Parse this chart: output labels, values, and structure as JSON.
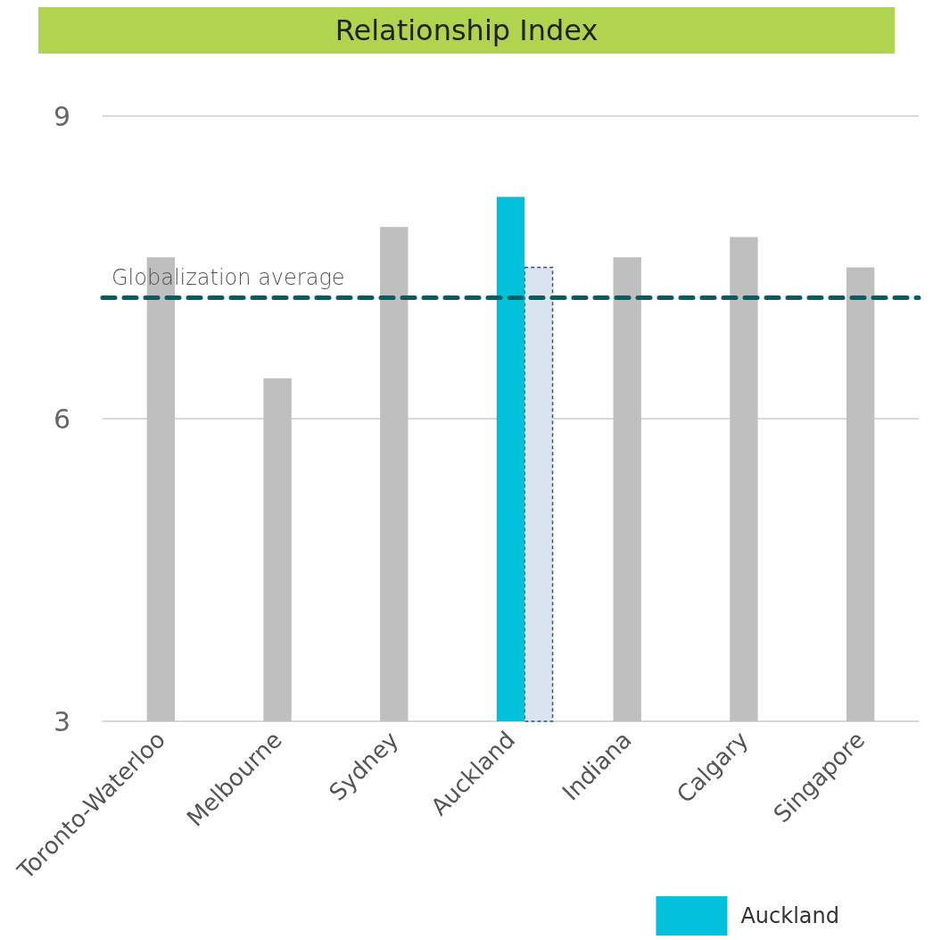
{
  "chart_data": {
    "type": "bar",
    "title": "Relationship Index",
    "categories": [
      "Toronto-Waterloo",
      "Melbourne",
      "Sydney",
      "Auckland",
      "Indiana",
      "Calgary",
      "Singapore"
    ],
    "series": [
      {
        "color": "#bfbfbf",
        "values": [
          7.6,
          6.4,
          7.9,
          null,
          7.6,
          7.8,
          7.5
        ]
      },
      {
        "name": "Auckland",
        "color": "#00c0da",
        "values": [
          null,
          null,
          null,
          8.2,
          null,
          null,
          null
        ]
      },
      {
        "color": "#dae3f0",
        "line_style": "dashed",
        "values": [
          null,
          null,
          null,
          7.5,
          null,
          null,
          null
        ]
      }
    ],
    "ylim": [
      3,
      9
    ],
    "yticks": [
      3,
      6,
      9
    ],
    "grid": "y",
    "legend": "bottom right",
    "ref_lines": [
      {
        "axis": "y",
        "value": 7.2,
        "label": "Globalization average",
        "color": "#006060",
        "line_style": "dashed"
      }
    ]
  }
}
